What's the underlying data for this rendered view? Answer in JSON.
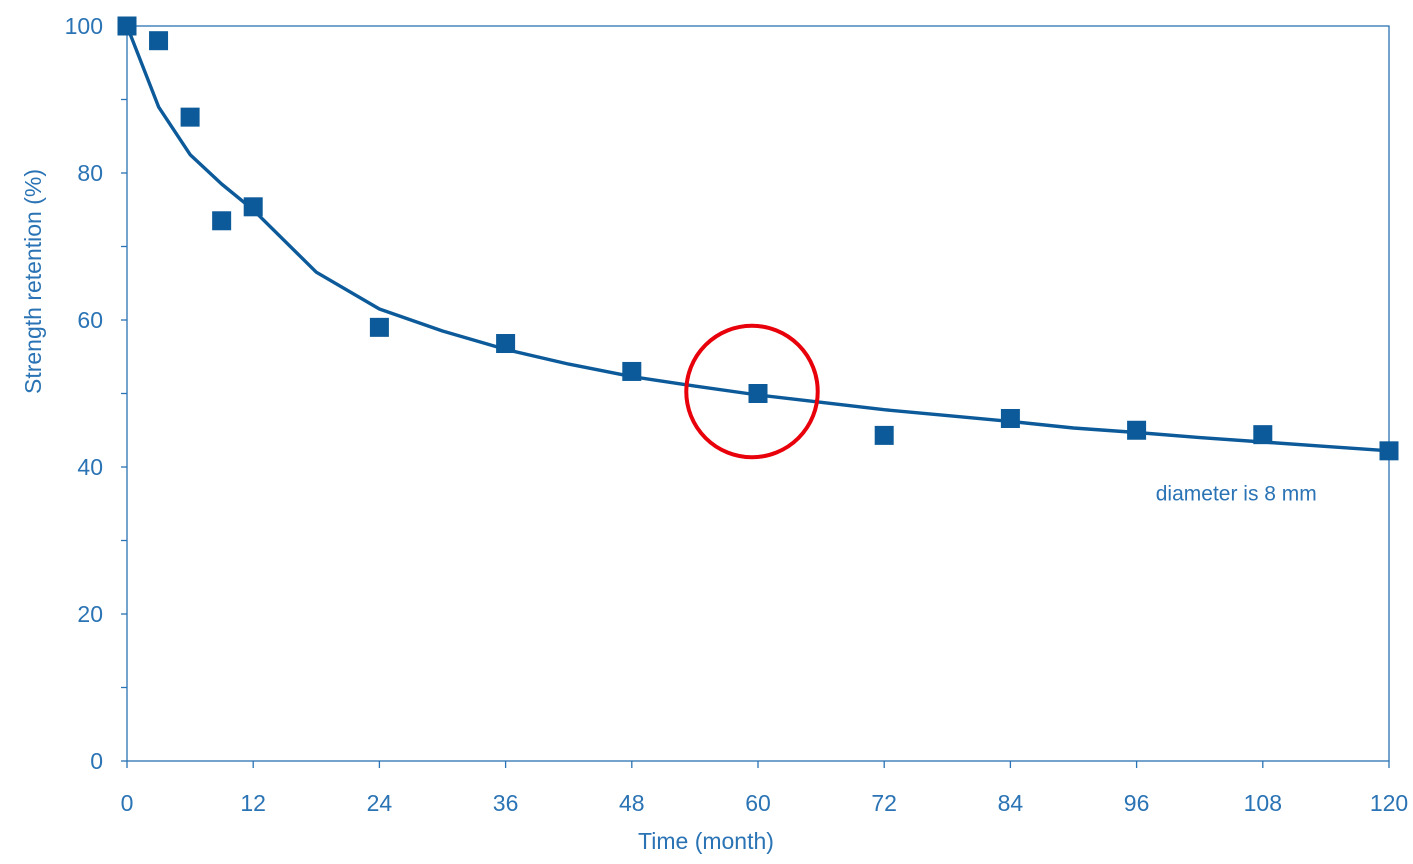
{
  "chart_data": {
    "type": "scatter",
    "xlabel": "Time (month)",
    "ylabel": "Strength retention (%)",
    "xlim": [
      0,
      120
    ],
    "ylim": [
      0,
      100
    ],
    "xticks": [
      0,
      12,
      24,
      36,
      48,
      60,
      72,
      84,
      96,
      108,
      120
    ],
    "xtick_labels": [
      "0",
      "12",
      "24",
      "36",
      "48",
      "60",
      "72",
      "84",
      "96",
      "108",
      "120"
    ],
    "yticks": [
      0,
      20,
      40,
      60,
      80,
      100
    ],
    "ytick_labels": [
      "0",
      "20",
      "40",
      "60",
      "80",
      "100"
    ],
    "grid": false,
    "series": [
      {
        "kind": "points",
        "marker": "square",
        "x": [
          0,
          3,
          6,
          9,
          12,
          24,
          36,
          48,
          60,
          72,
          84,
          96,
          108,
          120
        ],
        "y": [
          100,
          98,
          87.6,
          73.5,
          75.4,
          59,
          56.8,
          53,
          50,
          44.3,
          46.6,
          45,
          44.4,
          42.2
        ]
      },
      {
        "kind": "fit-line",
        "x": [
          0,
          3,
          6,
          9,
          12,
          18,
          24,
          30,
          36,
          42,
          48,
          54,
          60,
          66,
          72,
          78,
          84,
          90,
          96,
          102,
          108,
          114,
          120
        ],
        "y": [
          100,
          89,
          82.5,
          78.5,
          75,
          66.5,
          61.5,
          58.5,
          56,
          54,
          52.3,
          51,
          49.8,
          48.8,
          47.8,
          47,
          46.2,
          45.3,
          44.7,
          44,
          43.4,
          42.8,
          42.2
        ]
      }
    ],
    "annotations": [
      {
        "text": "diameter is 8 mm",
        "x": 108,
        "y": 36.5
      }
    ],
    "highlight": {
      "shape": "circle",
      "x": 60,
      "y": 50,
      "radius_x_units": 6.25
    },
    "colors": {
      "series": "#0c5a99",
      "axis": "#2a73b4",
      "text": "#2a73b4",
      "highlight": "#e8000b"
    }
  }
}
